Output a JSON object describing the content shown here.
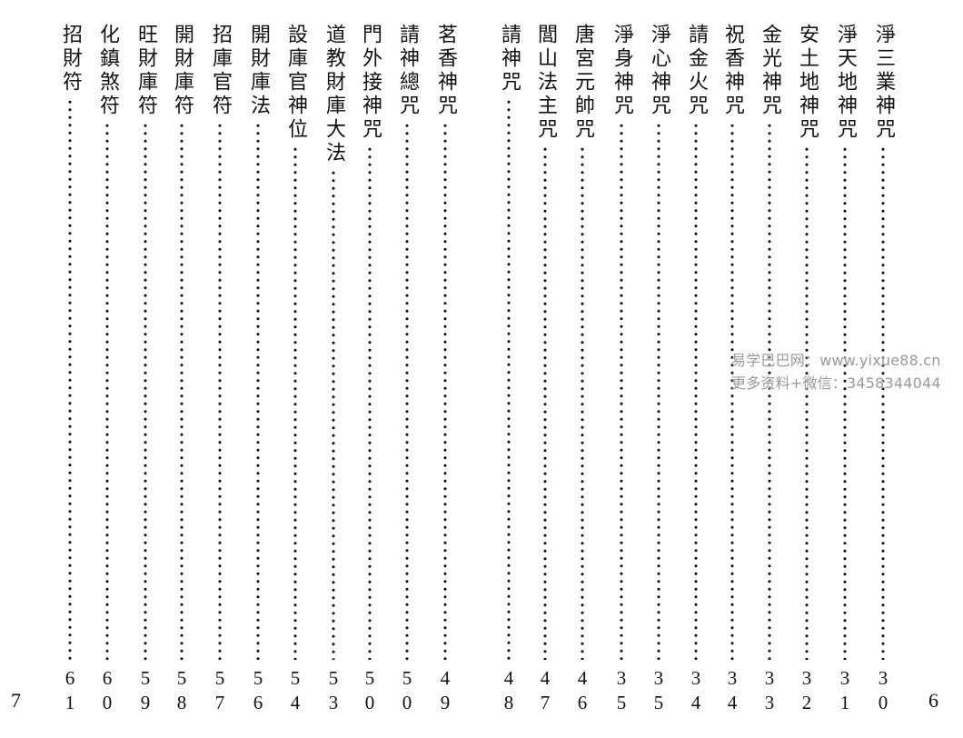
{
  "entries": [
    {
      "title": "淨三業神咒",
      "page": "30"
    },
    {
      "title": "淨天地神咒",
      "page": "31"
    },
    {
      "title": "安土地神咒",
      "page": "32"
    },
    {
      "title": "金光神咒",
      "page": "33"
    },
    {
      "title": "祝香神咒",
      "page": "34"
    },
    {
      "title": "請金火咒",
      "page": "34"
    },
    {
      "title": "淨心神咒",
      "page": "35"
    },
    {
      "title": "淨身神咒",
      "page": "35"
    },
    {
      "title": "唐宮元帥咒",
      "page": "46"
    },
    {
      "title": "閭山法主咒",
      "page": "47"
    },
    {
      "title": "請神咒",
      "page": "48"
    },
    {
      "title": "茗香神咒",
      "page": "49"
    },
    {
      "title": "請神總咒",
      "page": "50"
    },
    {
      "title": "門外接神咒",
      "page": "50"
    },
    {
      "title": "道教財庫大法",
      "page": "53"
    },
    {
      "title": "設庫官神位",
      "page": "54"
    },
    {
      "title": "開財庫法",
      "page": "56"
    },
    {
      "title": "招庫官符",
      "page": "57"
    },
    {
      "title": "開財庫符",
      "page": "58"
    },
    {
      "title": "旺財庫符",
      "page": "59"
    },
    {
      "title": "化鎮煞符",
      "page": "60"
    },
    {
      "title": "招財符",
      "page": "61"
    }
  ],
  "folio": {
    "left": "7",
    "right": "6"
  },
  "watermark": {
    "line1": "易学巴巴网：www.yixue88.cn",
    "line2": "更多资料+微信：3458344044"
  }
}
